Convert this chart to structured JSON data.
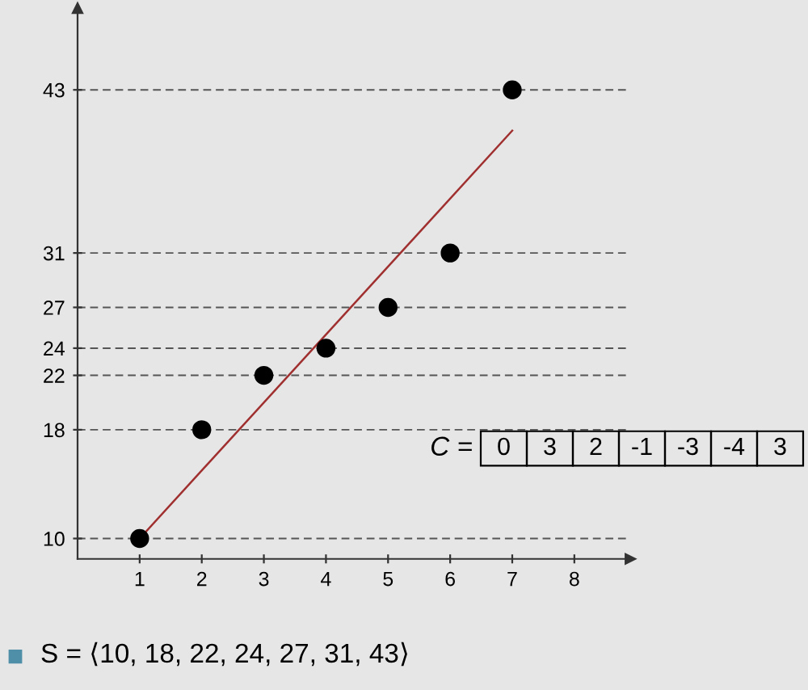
{
  "chart_data": {
    "type": "scatter",
    "x": [
      1,
      2,
      3,
      4,
      5,
      6,
      7
    ],
    "series": [
      {
        "color": "#000000",
        "values": [
          10,
          18,
          22,
          24,
          27,
          31,
          43
        ],
        "marker": "circle"
      },
      {
        "type": "line",
        "color": "#a03030",
        "x": [
          1,
          7
        ],
        "values": [
          10,
          40
        ],
        "marker": "none",
        "line_style": "solid"
      }
    ],
    "xlim": [
      0,
      8.9
    ],
    "ylim": [
      8.5,
      49
    ],
    "xticks": [
      1,
      2,
      3,
      4,
      5,
      6,
      7,
      8
    ],
    "yticks": [
      10,
      18,
      22,
      24,
      27,
      31,
      43
    ],
    "grid": "y",
    "annotations": [
      "C =",
      "0",
      "3",
      "2",
      "-1",
      "-3",
      "-4",
      "3",
      "S = ⟨10, 18, 22, 24, 27, 31, 43⟩"
    ]
  }
}
